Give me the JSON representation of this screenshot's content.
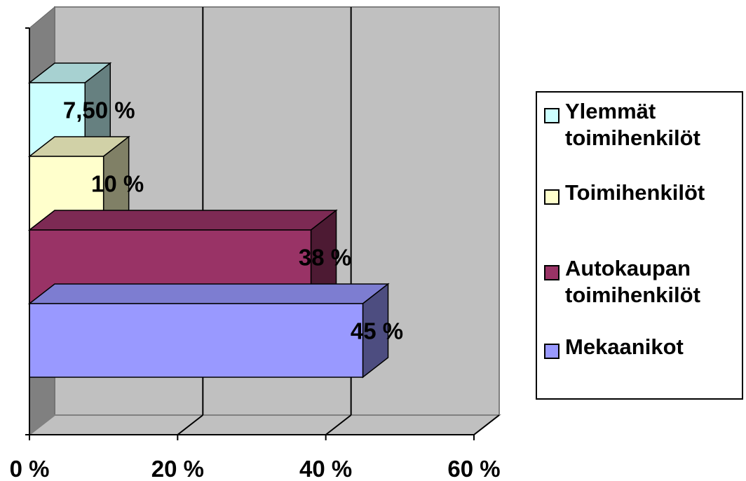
{
  "chart_data": {
    "type": "bar",
    "orientation": "horizontal",
    "three_d": true,
    "categories": [
      "Ylemmät toimihenkilöt",
      "Toimihenkilöt",
      "Autokaupan toimihenkilöt",
      "Mekaanikot"
    ],
    "values": [
      7.5,
      10,
      38,
      45
    ],
    "data_labels": [
      "7,50 %",
      "10 %",
      "38 %",
      "45 %"
    ],
    "colors": [
      "#CCFFFF",
      "#FFFFCC",
      "#993366",
      "#9999FF"
    ],
    "x_ticks": [
      0,
      20,
      40,
      60
    ],
    "x_tick_labels": [
      "0 %",
      "20 %",
      "40 %",
      "60 %"
    ],
    "xlim": [
      0,
      60
    ],
    "grid": true,
    "legend_position": "right",
    "legend": [
      "Ylemmät toimihenkilöt",
      "Toimihenkilöt",
      "Autokaupan toimihenkilöt",
      "Mekaanikot"
    ]
  }
}
